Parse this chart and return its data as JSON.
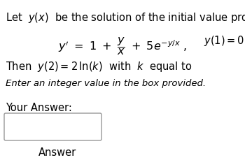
{
  "bg_color": "#ffffff",
  "line1": "Let  $y(x)$  be the solution of the initial value problem",
  "line2_eq": "$y' \\ = \\ 1 \\ + \\ \\dfrac{y}{x} \\ + \\ 5e^{-y/x}$  ,",
  "line2_ic": "$y(1){=}0$",
  "line3": "Then  $y(2) = 2\\,\\ln(k)$  with  $k$  equal to",
  "line4": "Enter an integer value in the box provided.",
  "line5": "Your Answer:",
  "line6": "Answer",
  "fs_main": 10.5,
  "fs_eq": 11.5,
  "fs_italic": 9.5
}
